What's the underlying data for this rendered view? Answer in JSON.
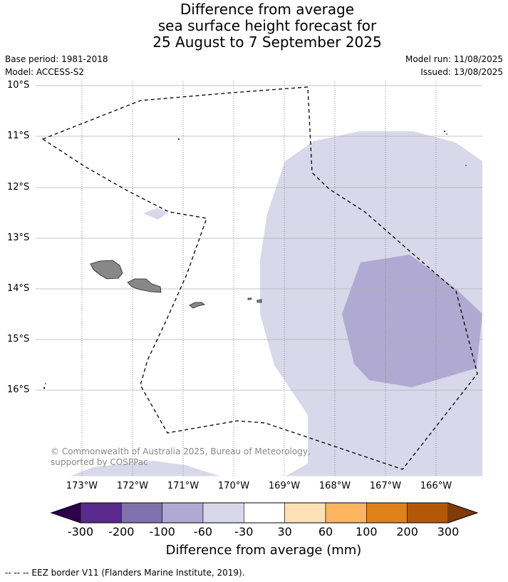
{
  "title": {
    "line1": "Difference from average",
    "line2": "sea surface height forecast for",
    "line3": "25 August to 7 September 2025"
  },
  "meta": {
    "base_period": "Base period: 1981-2018",
    "model": "Model: ACCESS-S2",
    "model_run": "Model run: 11/08/2025",
    "issued": "Issued: 13/08/2025"
  },
  "map": {
    "lat_labels": [
      "10°S",
      "11°S",
      "12°S",
      "13°S",
      "14°S",
      "15°S",
      "16°S"
    ],
    "lon_labels": [
      "173°W",
      "172°W",
      "171°W",
      "170°W",
      "169°W",
      "168°W",
      "167°W",
      "166°W"
    ],
    "copyright": "© Commonwealth of Australia 2025, Bureau of Meteorology, supported by COSPPac",
    "land_color": "#888888",
    "fill_light": "#d8d8ea",
    "fill_mid": "#b0aad2"
  },
  "colorbar": {
    "title": "Difference from average (mm)",
    "labels": [
      "-300",
      "-200",
      "-100",
      "-60",
      "-30",
      "30",
      "60",
      "100",
      "200",
      "300"
    ],
    "colors": [
      "#2d004b",
      "#5a2a8e",
      "#7f72ae",
      "#b0aad2",
      "#d8d8ea",
      "#ffffff",
      "#fee0b6",
      "#fbb55e",
      "#e0811a",
      "#b35806",
      "#7f3b08"
    ]
  },
  "footnote": "--  --  -- EEZ border V11 (Flanders Marine Institute, 2019)."
}
